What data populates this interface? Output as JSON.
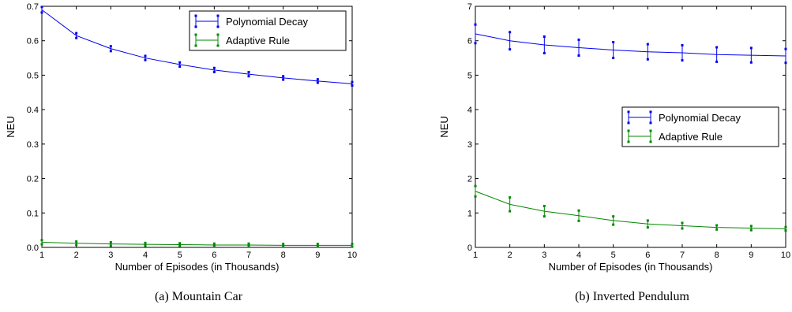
{
  "colors": {
    "polynomial": "#0000ee",
    "adaptive": "#008800"
  },
  "chart_data": [
    {
      "type": "line",
      "caption": "(a) Mountain Car",
      "xlabel": "Number of Episodes (in Thousands)",
      "ylabel": "NEU",
      "xlim": [
        1,
        10
      ],
      "ylim": [
        0,
        0.7
      ],
      "xticks": [
        1,
        2,
        3,
        4,
        5,
        6,
        7,
        8,
        9,
        10
      ],
      "yticks": [
        0,
        0.1,
        0.2,
        0.3,
        0.4,
        0.5,
        0.6,
        0.7
      ],
      "ytick_labels": [
        "0.0",
        "0.1",
        "0.2",
        "0.3",
        "0.4",
        "0.5",
        "0.6",
        "0.7"
      ],
      "legend_position": "top-right",
      "x": [
        1,
        2,
        3,
        4,
        5,
        6,
        7,
        8,
        9,
        10
      ],
      "series": [
        {
          "name": "Polynomial Decay",
          "color": "#0000ee",
          "values": [
            0.69,
            0.615,
            0.577,
            0.55,
            0.531,
            0.515,
            0.503,
            0.492,
            0.483,
            0.475
          ],
          "errors": [
            0.008,
            0.007,
            0.007,
            0.006,
            0.006,
            0.006,
            0.006,
            0.005,
            0.005,
            0.005
          ]
        },
        {
          "name": "Adaptive Rule",
          "color": "#008800",
          "values": [
            0.015,
            0.012,
            0.01,
            0.009,
            0.008,
            0.007,
            0.007,
            0.006,
            0.006,
            0.006
          ],
          "errors": [
            0.006,
            0.005,
            0.005,
            0.004,
            0.004,
            0.004,
            0.004,
            0.004,
            0.004,
            0.004
          ]
        }
      ]
    },
    {
      "type": "line",
      "caption": "(b) Inverted Pendulum",
      "xlabel": "Number of Episodes (in Thousands)",
      "ylabel": "NEU",
      "xlim": [
        1,
        10
      ],
      "ylim": [
        0,
        7
      ],
      "xticks": [
        1,
        2,
        3,
        4,
        5,
        6,
        7,
        8,
        9,
        10
      ],
      "yticks": [
        0,
        1,
        2,
        3,
        4,
        5,
        6,
        7
      ],
      "ytick_labels": [
        "0",
        "1",
        "2",
        "3",
        "4",
        "5",
        "6",
        "7"
      ],
      "legend_position": "center-right",
      "x": [
        1,
        2,
        3,
        4,
        5,
        6,
        7,
        8,
        9,
        10
      ],
      "series": [
        {
          "name": "Polynomial Decay",
          "color": "#0000ee",
          "values": [
            6.2,
            6.0,
            5.88,
            5.8,
            5.73,
            5.68,
            5.65,
            5.6,
            5.58,
            5.56
          ],
          "errors": [
            0.27,
            0.25,
            0.24,
            0.23,
            0.23,
            0.22,
            0.22,
            0.21,
            0.21,
            0.2
          ]
        },
        {
          "name": "Adaptive Rule",
          "color": "#008800",
          "values": [
            1.63,
            1.25,
            1.05,
            0.92,
            0.78,
            0.68,
            0.63,
            0.58,
            0.56,
            0.54
          ],
          "errors": [
            0.15,
            0.2,
            0.15,
            0.15,
            0.12,
            0.1,
            0.08,
            0.06,
            0.06,
            0.05
          ]
        }
      ]
    }
  ]
}
